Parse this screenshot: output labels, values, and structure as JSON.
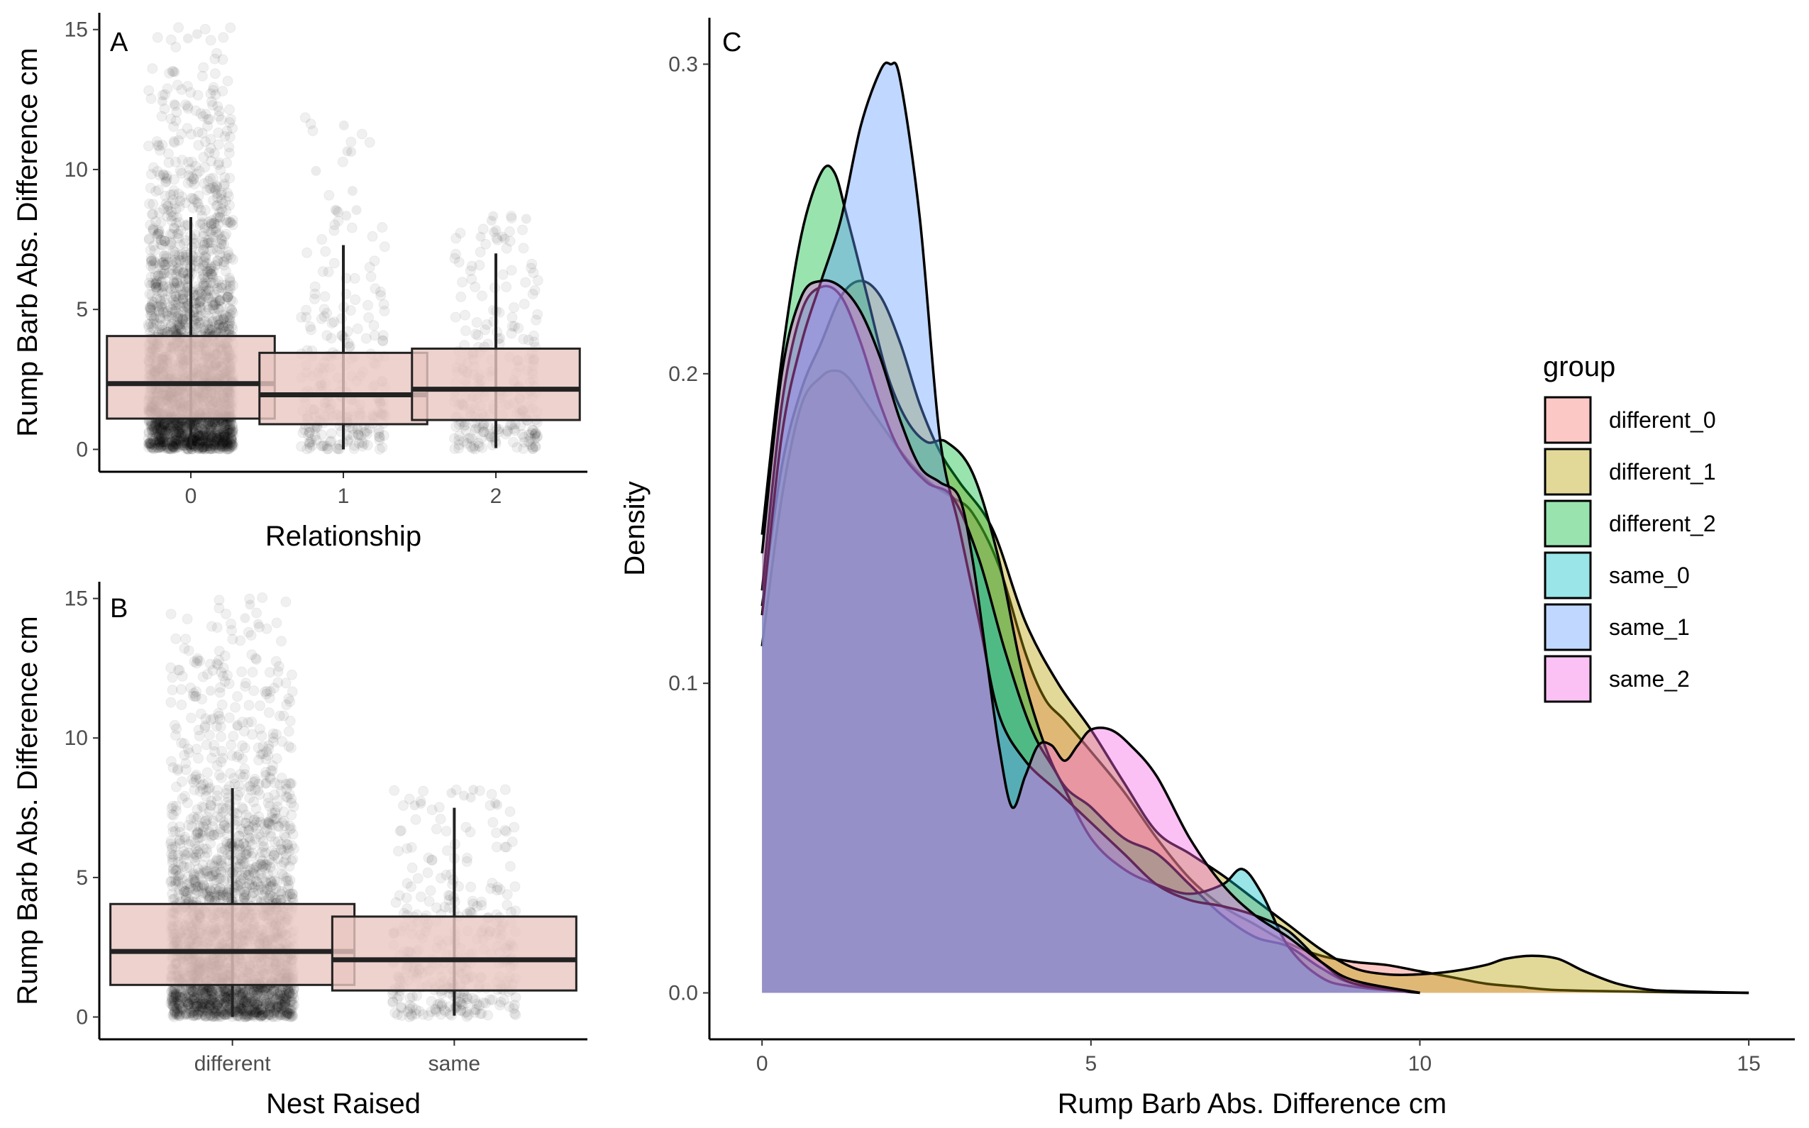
{
  "chart_data": [
    {
      "panel": "A",
      "type": "boxplot",
      "xlabel": "Relationship",
      "ylabel": "Rump Barb Abs. Difference cm",
      "categories": [
        "0",
        "1",
        "2"
      ],
      "ylim": [
        -0.8,
        15.6
      ],
      "yticks": [
        0,
        5,
        10,
        15
      ],
      "fill": "#e8c7c2",
      "boxes": [
        {
          "category": "0",
          "whisker_low": 0,
          "q1": 1.1,
          "median": 2.35,
          "q3": 4.05,
          "whisker_high": 8.3,
          "max_point": 15.1,
          "n_points": 2600
        },
        {
          "category": "1",
          "whisker_low": 0,
          "q1": 0.9,
          "median": 1.95,
          "q3": 3.45,
          "whisker_high": 7.3,
          "max_point": 12.1,
          "n_points": 260
        },
        {
          "category": "2",
          "whisker_low": 0.05,
          "q1": 1.05,
          "median": 2.15,
          "q3": 3.6,
          "whisker_high": 7.0,
          "max_point": 8.5,
          "n_points": 260
        }
      ]
    },
    {
      "panel": "B",
      "type": "boxplot",
      "xlabel": "Nest Raised",
      "ylabel": "Rump Barb Abs. Difference cm",
      "categories": [
        "different",
        "same"
      ],
      "ylim": [
        -0.8,
        15.6
      ],
      "yticks": [
        0,
        5,
        10,
        15
      ],
      "fill": "#e8c7c2",
      "boxes": [
        {
          "category": "different",
          "whisker_low": 0,
          "q1": 1.15,
          "median": 2.35,
          "q3": 4.05,
          "whisker_high": 8.2,
          "max_point": 15.1,
          "n_points": 2600
        },
        {
          "category": "same",
          "whisker_low": 0.05,
          "q1": 0.95,
          "median": 2.05,
          "q3": 3.6,
          "whisker_high": 7.5,
          "max_point": 8.2,
          "n_points": 360
        }
      ]
    },
    {
      "panel": "C",
      "type": "area",
      "xlabel": "Rump Barb Abs. Difference cm",
      "ylabel": "Density",
      "xlim": [
        -0.8,
        15.7
      ],
      "ylim": [
        -0.015,
        0.315
      ],
      "xticks": [
        0,
        5,
        10,
        15
      ],
      "yticks": [
        0.0,
        0.1,
        0.2,
        0.3
      ],
      "ytick_labels": [
        "0.0",
        "0.1",
        "0.2",
        "0.3"
      ],
      "legend_title": "group",
      "legend_position": "right",
      "series": [
        {
          "name": "different_0",
          "color": "#f8766d",
          "x": [
            0,
            0.3,
            0.6,
            0.9,
            1.1,
            1.3,
            1.6,
            2.0,
            2.3,
            2.6,
            2.9,
            3.2,
            3.6,
            4.0,
            4.3,
            4.6,
            5.0,
            5.5,
            6.0,
            6.5,
            7.0,
            7.5,
            8.0,
            8.5,
            9.0,
            9.5,
            10.0,
            10.5,
            11.0,
            11.5,
            12.0,
            13.0,
            14.0,
            15.0
          ],
          "y": [
            0.112,
            0.16,
            0.19,
            0.199,
            0.201,
            0.199,
            0.19,
            0.178,
            0.17,
            0.164,
            0.16,
            0.155,
            0.138,
            0.11,
            0.095,
            0.088,
            0.078,
            0.065,
            0.05,
            0.037,
            0.028,
            0.022,
            0.016,
            0.012,
            0.01,
            0.009,
            0.007,
            0.005,
            0.003,
            0.002,
            0.001,
            0.0005,
            0.0002,
            0.0
          ]
        },
        {
          "name": "different_1",
          "color": "#b79f00",
          "x": [
            0,
            0.3,
            0.6,
            0.9,
            1.2,
            1.5,
            1.8,
            2.1,
            2.4,
            2.7,
            3.0,
            3.5,
            4.0,
            4.5,
            5.0,
            5.5,
            6.0,
            6.5,
            7.0,
            7.5,
            8.0,
            8.5,
            9.0,
            9.5,
            10.0,
            10.5,
            11.0,
            11.3,
            11.7,
            12.1,
            12.5,
            13.0,
            13.5,
            14.0,
            15.0
          ],
          "y": [
            0.125,
            0.17,
            0.195,
            0.21,
            0.225,
            0.23,
            0.225,
            0.21,
            0.19,
            0.175,
            0.165,
            0.15,
            0.12,
            0.1,
            0.085,
            0.068,
            0.052,
            0.045,
            0.038,
            0.03,
            0.022,
            0.014,
            0.008,
            0.006,
            0.006,
            0.007,
            0.009,
            0.011,
            0.012,
            0.011,
            0.007,
            0.003,
            0.001,
            0.0005,
            0.0
          ]
        },
        {
          "name": "different_2",
          "color": "#00ba38",
          "x": [
            0,
            0.3,
            0.6,
            0.9,
            1.1,
            1.3,
            1.6,
            1.9,
            2.2,
            2.5,
            2.8,
            3.2,
            3.6,
            4.0,
            4.5,
            5.0,
            5.5,
            6.0,
            6.5,
            7.0,
            7.5,
            8.0,
            8.5,
            9.0,
            10.0
          ],
          "y": [
            0.148,
            0.205,
            0.245,
            0.265,
            0.265,
            0.25,
            0.225,
            0.2,
            0.185,
            0.178,
            0.178,
            0.168,
            0.14,
            0.1,
            0.07,
            0.06,
            0.05,
            0.045,
            0.035,
            0.025,
            0.018,
            0.015,
            0.008,
            0.003,
            0.0
          ]
        },
        {
          "name": "same_0",
          "color": "#00bfc4",
          "x": [
            0,
            0.3,
            0.6,
            0.9,
            1.2,
            1.5,
            1.8,
            2.1,
            2.5,
            2.9,
            3.3,
            3.7,
            4.1,
            4.5,
            5.0,
            5.5,
            6.0,
            6.5,
            7.0,
            7.3,
            7.6,
            8.0,
            8.5,
            9.0,
            10.0
          ],
          "y": [
            0.13,
            0.19,
            0.22,
            0.228,
            0.225,
            0.21,
            0.19,
            0.175,
            0.165,
            0.16,
            0.14,
            0.11,
            0.085,
            0.07,
            0.05,
            0.04,
            0.035,
            0.032,
            0.035,
            0.04,
            0.032,
            0.015,
            0.005,
            0.002,
            0.0
          ]
        },
        {
          "name": "same_1",
          "color": "#619cff",
          "x": [
            0,
            0.3,
            0.6,
            0.9,
            1.2,
            1.5,
            1.8,
            1.95,
            2.1,
            2.4,
            2.7,
            3.0,
            3.3,
            3.6,
            4.0,
            4.5,
            5.0,
            5.5,
            6.0,
            6.5,
            7.0,
            7.5,
            8.0,
            8.5,
            9.0,
            10.0
          ],
          "y": [
            0.122,
            0.18,
            0.21,
            0.23,
            0.25,
            0.28,
            0.298,
            0.3,
            0.295,
            0.25,
            0.18,
            0.15,
            0.12,
            0.09,
            0.075,
            0.065,
            0.055,
            0.045,
            0.035,
            0.03,
            0.028,
            0.025,
            0.02,
            0.01,
            0.003,
            0.0
          ]
        },
        {
          "name": "same_2",
          "color": "#f564e3",
          "x": [
            0,
            0.3,
            0.6,
            0.9,
            1.2,
            1.5,
            1.8,
            2.1,
            2.4,
            2.7,
            3.0,
            3.2,
            3.4,
            3.6,
            3.8,
            4.0,
            4.2,
            4.4,
            4.6,
            4.8,
            5.0,
            5.3,
            5.6,
            6.0,
            6.5,
            7.0,
            7.5,
            8.0,
            8.5,
            9.0,
            10.0
          ],
          "y": [
            0.142,
            0.2,
            0.225,
            0.23,
            0.228,
            0.22,
            0.205,
            0.185,
            0.17,
            0.165,
            0.16,
            0.14,
            0.11,
            0.08,
            0.06,
            0.07,
            0.08,
            0.08,
            0.075,
            0.08,
            0.085,
            0.085,
            0.08,
            0.07,
            0.05,
            0.035,
            0.025,
            0.018,
            0.01,
            0.004,
            0.0
          ]
        }
      ]
    }
  ]
}
